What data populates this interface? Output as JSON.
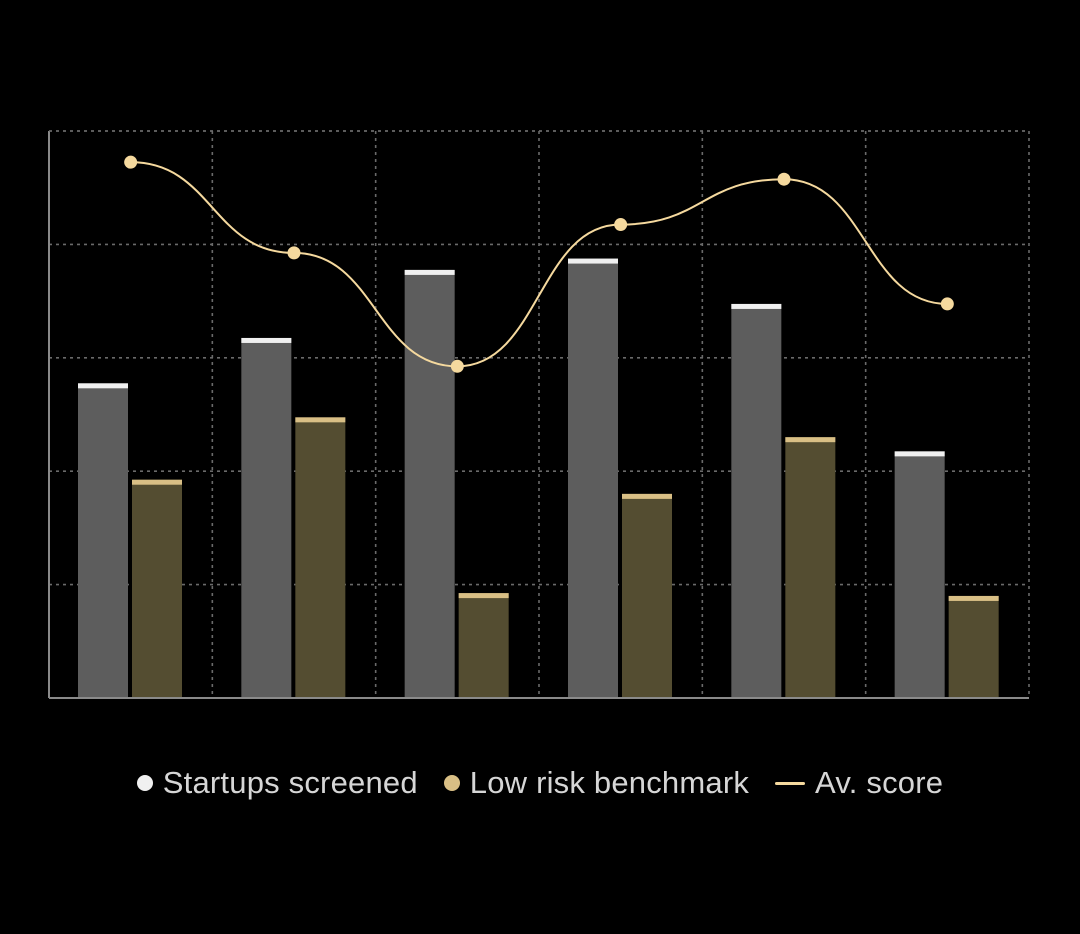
{
  "chart_data": {
    "type": "bar",
    "categories": [
      "",
      "",
      "",
      "",
      "",
      ""
    ],
    "ylim": [
      0,
      100
    ],
    "grid": true,
    "legend_position": "bottom-center",
    "series": [
      {
        "name": "Startups screened",
        "type": "bar",
        "values": [
          55.5,
          63.5,
          75.5,
          77.5,
          69.5,
          43.5
        ],
        "color": "#5d5d5d",
        "cap_color": "#f0f0f0"
      },
      {
        "name": "Low risk benchmark",
        "type": "bar",
        "values": [
          38.5,
          49.5,
          18.5,
          36,
          46,
          18
        ],
        "color": "#544d31",
        "cap_color": "#d9bf85"
      },
      {
        "name": "Av. score",
        "type": "line",
        "values": [
          94.5,
          78.5,
          58.5,
          83.5,
          91.5,
          69.5
        ],
        "color": "#f5d99e"
      }
    ]
  },
  "legend": {
    "items": [
      {
        "label": "Startups screened",
        "color": "#f0f0f0",
        "marker": "dot"
      },
      {
        "label": "Low risk benchmark",
        "color": "#d9bf85",
        "marker": "dot"
      },
      {
        "label": "Av. score",
        "color": "#f5d99e",
        "marker": "line"
      }
    ]
  }
}
